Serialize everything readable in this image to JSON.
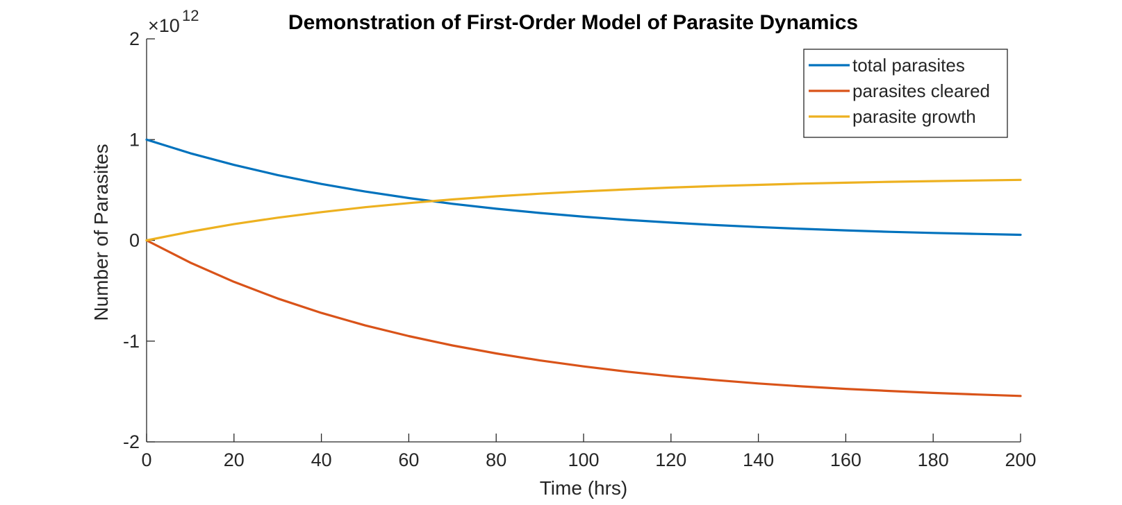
{
  "chart_data": {
    "type": "line",
    "title": "Demonstration of First-Order Model of Parasite Dynamics",
    "xlabel": "Time (hrs)",
    "ylabel": "Number of Parasites",
    "y_exponent_label": "×10",
    "y_exponent_power": "12",
    "xlim": [
      0,
      200
    ],
    "ylim": [
      -2,
      2
    ],
    "x_ticks": [
      0,
      20,
      40,
      60,
      80,
      100,
      120,
      140,
      160,
      180,
      200
    ],
    "x_tick_labels": [
      "0",
      "20",
      "40",
      "60",
      "80",
      "100",
      "120",
      "140",
      "160",
      "180",
      "200"
    ],
    "y_ticks": [
      -2,
      -1,
      0,
      1,
      2
    ],
    "y_tick_labels": [
      "-2",
      "-1",
      "0",
      "1",
      "2"
    ],
    "grid": false,
    "legend_position": "top-right",
    "x": [
      0,
      10,
      20,
      30,
      40,
      50,
      60,
      70,
      80,
      90,
      100,
      110,
      120,
      130,
      140,
      150,
      160,
      170,
      180,
      190,
      200
    ],
    "series": [
      {
        "name": "total parasites",
        "color": "#0072BD",
        "values": [
          1.0,
          0.865,
          0.749,
          0.648,
          0.56,
          0.485,
          0.42,
          0.363,
          0.314,
          0.272,
          0.235,
          0.203,
          0.176,
          0.152,
          0.132,
          0.114,
          0.099,
          0.085,
          0.074,
          0.064,
          0.055
        ]
      },
      {
        "name": "parasites cleared",
        "color": "#D95319",
        "values": [
          0.0,
          -0.221,
          -0.412,
          -0.577,
          -0.72,
          -0.844,
          -0.95,
          -1.043,
          -1.122,
          -1.192,
          -1.251,
          -1.303,
          -1.348,
          -1.386,
          -1.42,
          -1.449,
          -1.474,
          -1.495,
          -1.514,
          -1.53,
          -1.544
        ]
      },
      {
        "name": "parasite growth",
        "color": "#EDB120",
        "values": [
          0.0,
          0.086,
          0.161,
          0.225,
          0.28,
          0.329,
          0.37,
          0.406,
          0.437,
          0.463,
          0.486,
          0.506,
          0.524,
          0.539,
          0.551,
          0.563,
          0.572,
          0.581,
          0.588,
          0.594,
          0.6
        ]
      }
    ]
  }
}
